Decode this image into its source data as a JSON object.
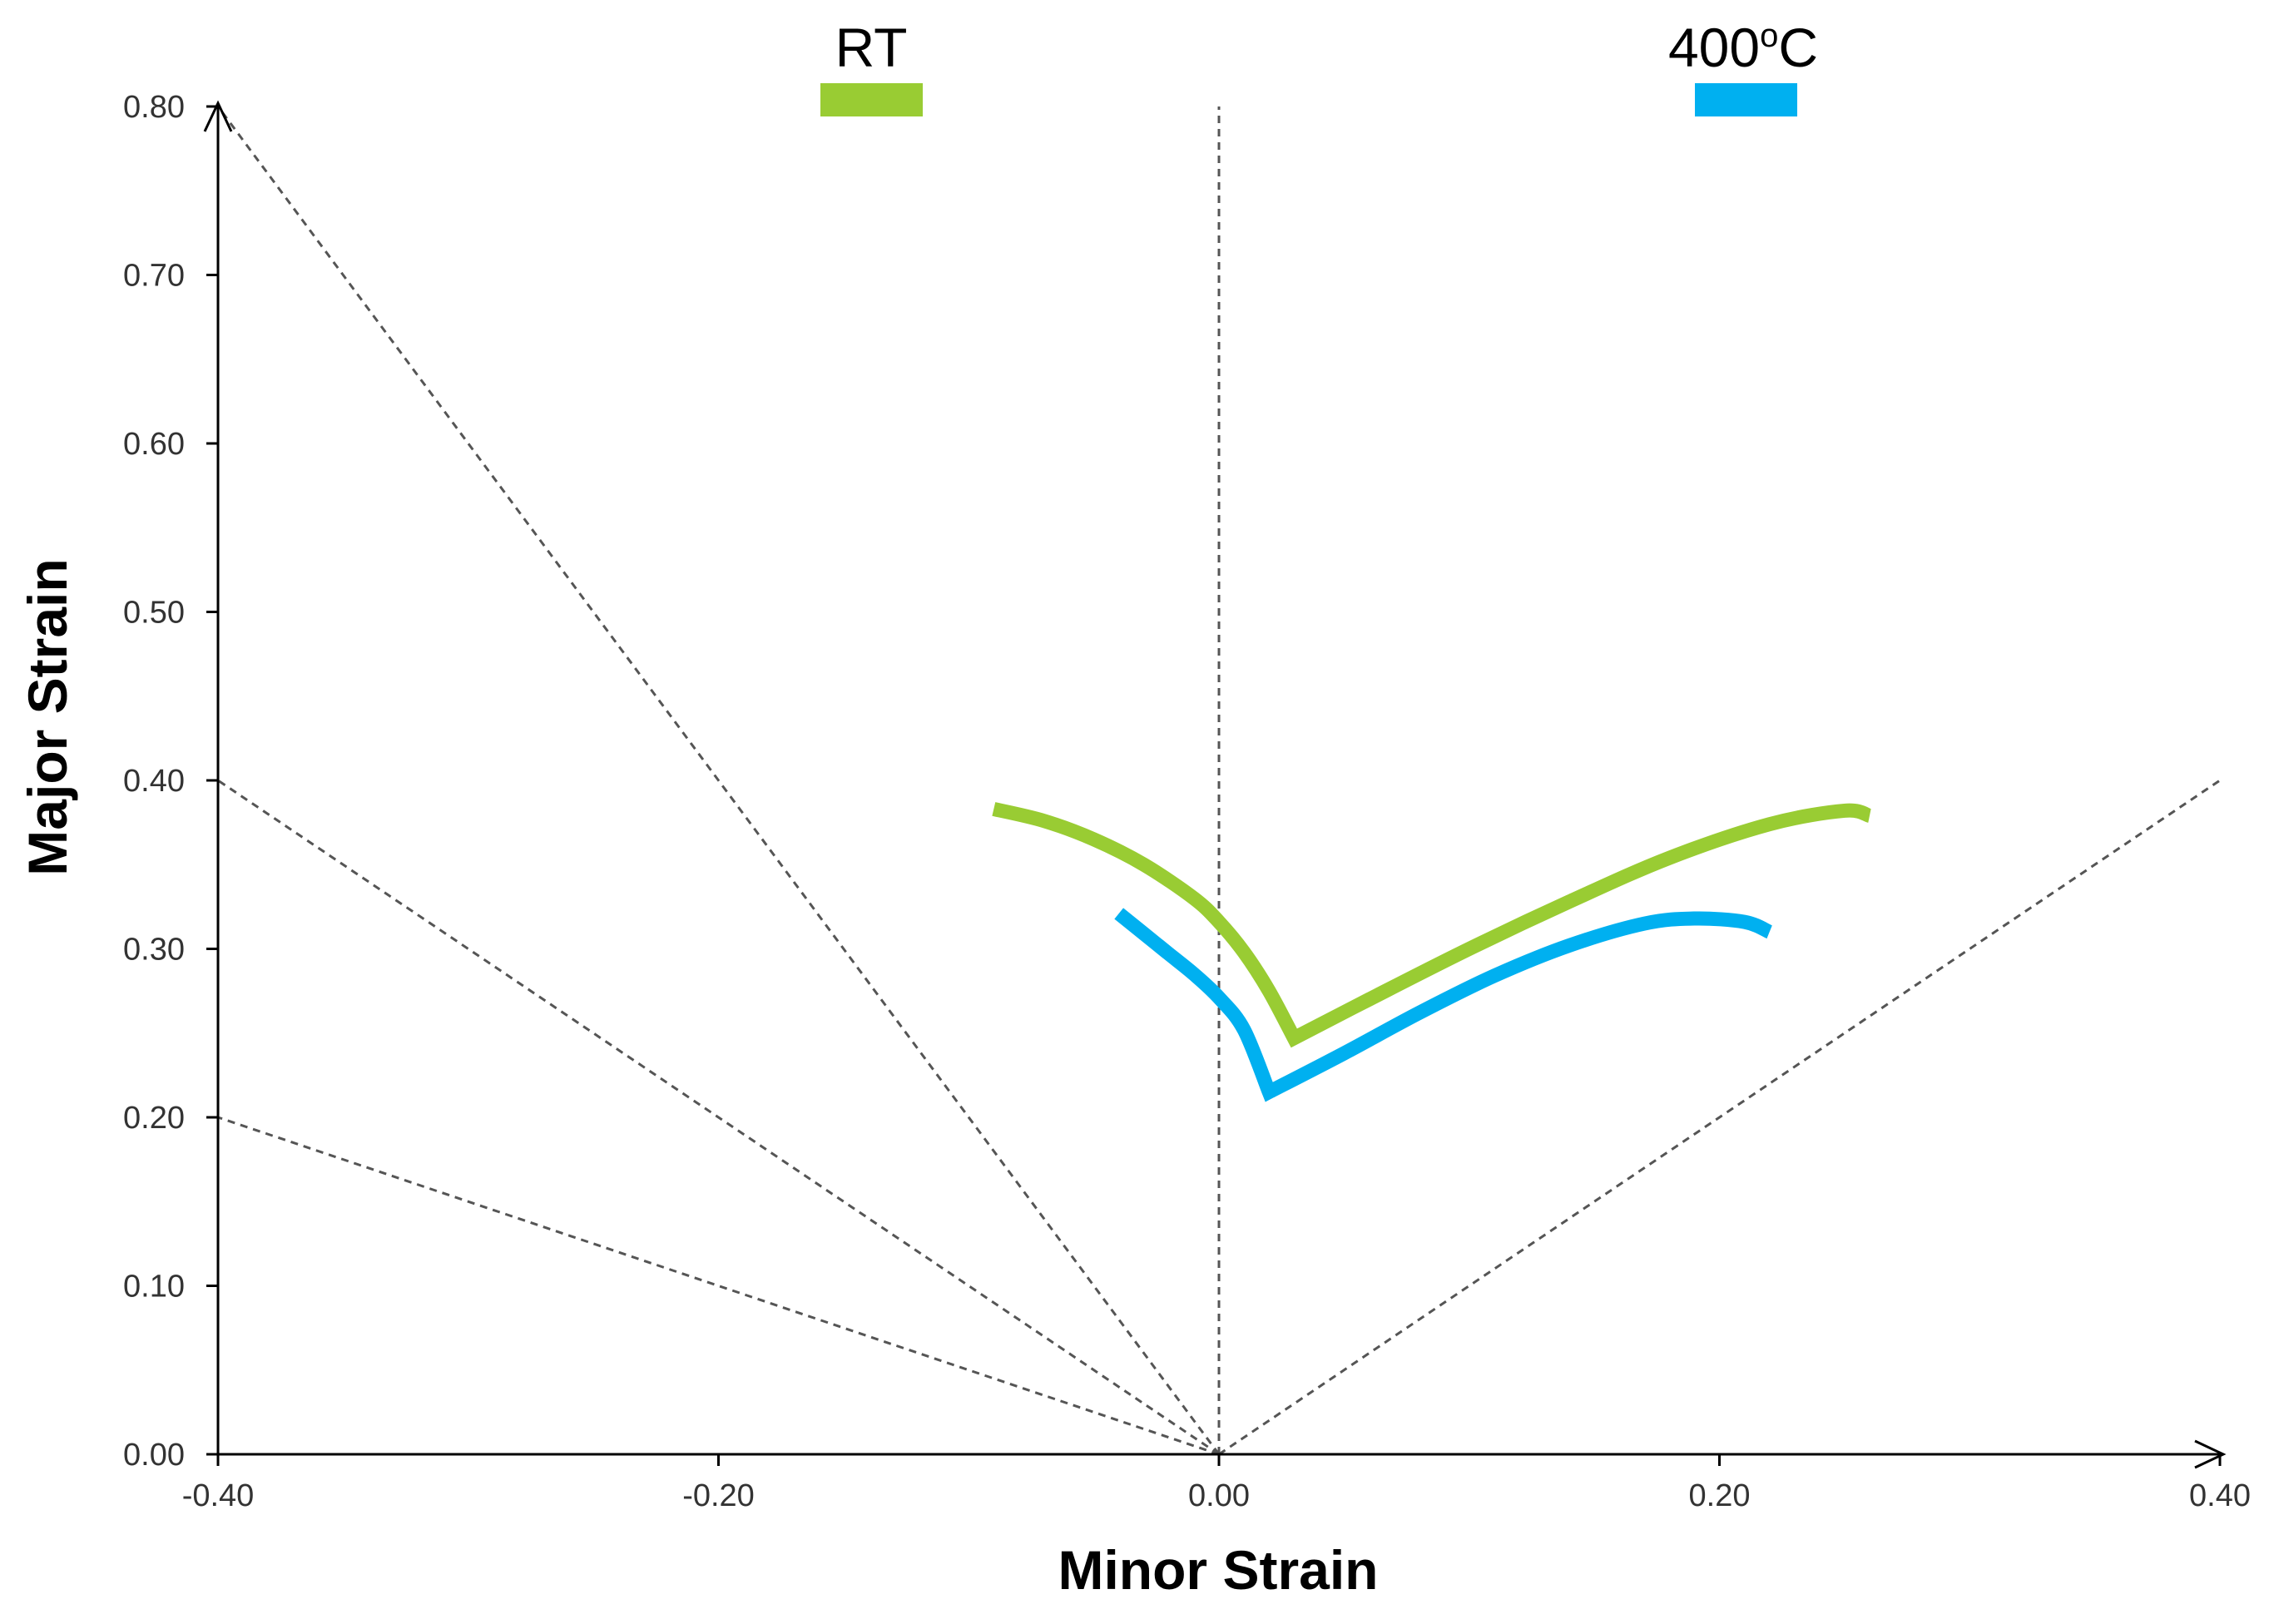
{
  "chart_data": {
    "type": "line",
    "title": "",
    "xlabel": "Minor Strain",
    "ylabel": "Major Strain",
    "xlim": [
      -0.4,
      0.4
    ],
    "ylim": [
      0.0,
      0.8
    ],
    "x_ticks": [
      -0.4,
      -0.2,
      0.0,
      0.2,
      0.4
    ],
    "x_tick_labels": [
      "-0.40",
      "-0.20",
      "0.00",
      "0.20",
      "0.40"
    ],
    "y_ticks": [
      0.0,
      0.1,
      0.2,
      0.3,
      0.4,
      0.5,
      0.6,
      0.7,
      0.8
    ],
    "y_tick_labels": [
      "0.00",
      "0.10",
      "0.20",
      "0.30",
      "0.40",
      "0.50",
      "0.60",
      "0.70",
      "0.80"
    ],
    "grid": false,
    "legend_position": "top",
    "series": [
      {
        "name": "RT",
        "color": "#99CC33",
        "x": [
          -0.09,
          -0.07,
          -0.05,
          -0.03,
          -0.01,
          0.0,
          0.01,
          0.02,
          0.03,
          0.06,
          0.1,
          0.14,
          0.18,
          0.22,
          0.25,
          0.26
        ],
        "y": [
          0.383,
          0.376,
          0.365,
          0.35,
          0.33,
          0.316,
          0.298,
          0.275,
          0.247,
          0.27,
          0.3,
          0.328,
          0.354,
          0.374,
          0.382,
          0.379
        ]
      },
      {
        "name": "400°C",
        "color": "#00B0F0",
        "x": [
          -0.04,
          -0.03,
          -0.02,
          -0.01,
          0.0,
          0.01,
          0.02,
          0.05,
          0.08,
          0.11,
          0.14,
          0.17,
          0.19,
          0.21,
          0.22
        ],
        "y": [
          0.321,
          0.309,
          0.297,
          0.285,
          0.271,
          0.252,
          0.215,
          0.238,
          0.262,
          0.284,
          0.302,
          0.315,
          0.318,
          0.316,
          0.31
        ]
      }
    ],
    "reference_lines": [
      {
        "style": "dashed",
        "x": [
          0.0,
          -0.4
        ],
        "y": [
          0.0,
          0.8
        ]
      },
      {
        "style": "dashed",
        "x": [
          0.0,
          -0.4
        ],
        "y": [
          0.0,
          0.4
        ]
      },
      {
        "style": "dashed",
        "x": [
          0.0,
          -0.4
        ],
        "y": [
          0.0,
          0.2
        ]
      },
      {
        "style": "dashed",
        "x": [
          0.0,
          0.4
        ],
        "y": [
          0.0,
          0.4
        ]
      },
      {
        "style": "dashed",
        "x": [
          0.0,
          0.0
        ],
        "y": [
          0.0,
          0.8
        ]
      }
    ],
    "legend": [
      {
        "label": "RT",
        "color": "#99CC33"
      },
      {
        "label_main": "400",
        "label_sup": "o",
        "label_tail": "C",
        "color": "#00B0F0"
      }
    ]
  }
}
